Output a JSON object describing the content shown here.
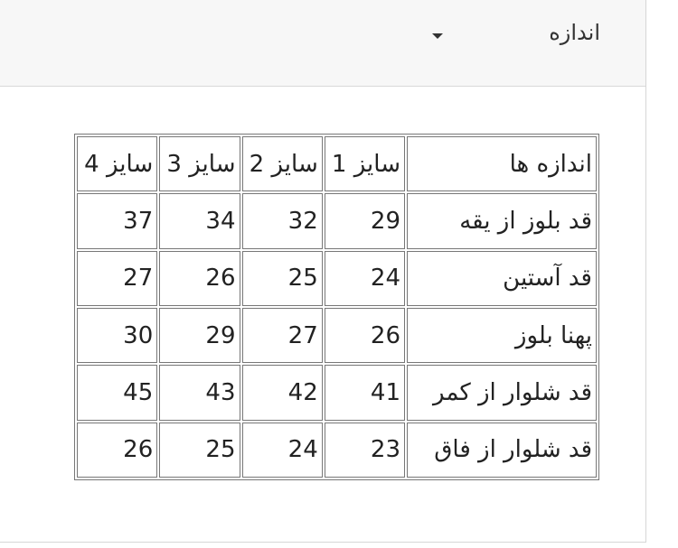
{
  "header": {
    "title": "اندازه"
  },
  "table": {
    "header": [
      "اندازه ها",
      "سایز 1",
      "سایز 2",
      "سایز 3",
      "سایز 4"
    ],
    "rows": [
      [
        "قد بلوز از یقه",
        29,
        32,
        34,
        37
      ],
      [
        "قد آستین",
        24,
        25,
        26,
        27
      ],
      [
        "پهنا بلوز",
        26,
        27,
        29,
        30
      ],
      [
        "قد شلوار از کمر",
        41,
        42,
        43,
        45
      ],
      [
        "قد شلوار از فاق",
        23,
        24,
        25,
        26
      ]
    ]
  }
}
